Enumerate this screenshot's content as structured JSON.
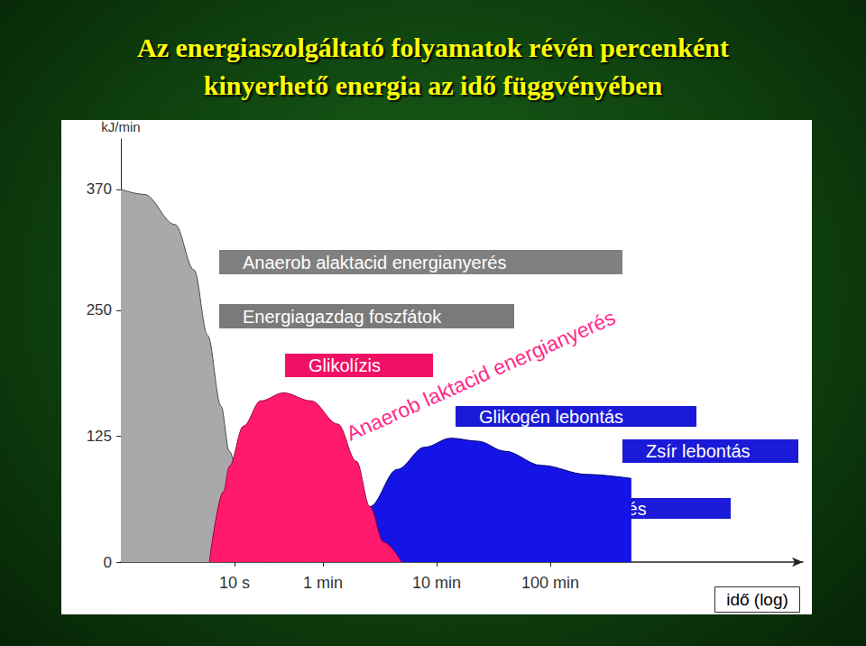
{
  "chart_data": {
    "type": "area",
    "title": "Az energiaszolgáltató folyamatok révén percenként\nkinyerhető energia az idő függvényében",
    "ylabel": "kJ/min",
    "xlabel": "idő (log)",
    "log": "x",
    "grid": false,
    "xlim": [
      1,
      1000000
    ],
    "xticks": [
      {
        "value": 10,
        "label": "10 s"
      },
      {
        "value": 60,
        "label": "1 min"
      },
      {
        "value": 600,
        "label": "10 min"
      },
      {
        "value": 6000,
        "label": "100 min"
      }
    ],
    "ylim": [
      0,
      420
    ],
    "yticks": [
      0,
      125,
      250,
      370
    ],
    "series": [
      {
        "name": "Energiagazdag foszfátok",
        "color": "#a9a9a9",
        "x": [
          1,
          1.6,
          3,
          4.4,
          5.8,
          7.6,
          9,
          12,
          17,
          30,
          47
        ],
        "values": [
          370,
          365,
          335,
          290,
          225,
          155,
          110,
          55,
          20,
          7,
          0
        ]
      },
      {
        "name": "Glikogén lebontás",
        "color": "#1414e6",
        "x": [
          21,
          43,
          90,
          155,
          270,
          470,
          800,
          1380,
          2400,
          5000,
          12600,
          31000
        ],
        "values": [
          0,
          7,
          30,
          55,
          92,
          114,
          123,
          120,
          110,
          96,
          87,
          83
        ]
      },
      {
        "name": "Glikolízis",
        "color": "#ff1a6e",
        "x": [
          6,
          8,
          9,
          12,
          17,
          27,
          47,
          81,
          118,
          155,
          204,
          295
        ],
        "values": [
          0,
          70,
          95,
          135,
          160,
          168,
          160,
          137,
          100,
          55,
          20,
          0
        ]
      }
    ],
    "annotations": [
      "Anaerob alaktacid energianyerés",
      "Anaerob laktacid energianyerés",
      "Zsír lebontás",
      "Aerob energianyerés"
    ]
  }
}
